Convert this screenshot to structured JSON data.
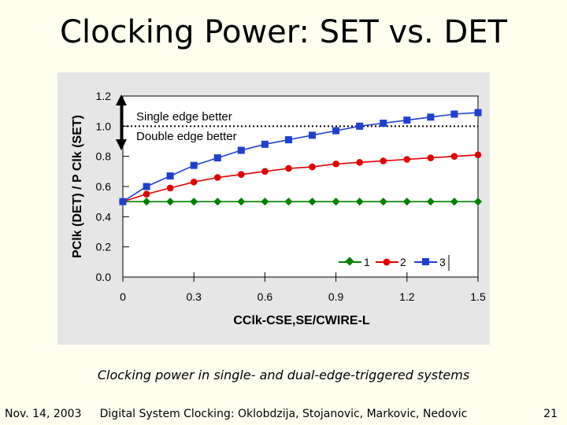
{
  "slide": {
    "title": "Clocking Power: SET vs. DET",
    "caption": "Clocking power in single- and dual-edge-triggered systems",
    "footer_left": "Nov. 14, 2003",
    "footer_center": "Digital System Clocking: Oklobdzija, Stojanovic, Markovic, Nedovic",
    "page_number": "21"
  },
  "chart_data": {
    "type": "line",
    "xlabel": "CClk-CSE,SE/CWIRE-L",
    "ylabel": "PClk (DET) / P Clk (SET)",
    "xlim": [
      0,
      1.5
    ],
    "ylim": [
      0,
      1.2
    ],
    "x_ticks": [
      "0",
      "0.3",
      "0.6",
      "0.9",
      "1.2",
      "1.5"
    ],
    "y_ticks": [
      "0.0",
      "0.2",
      "0.4",
      "0.6",
      "0.8",
      "1.0",
      "1.2"
    ],
    "reference_line": {
      "y": 1.0,
      "style": "dotted"
    },
    "annotations": {
      "above": "Single edge better",
      "below": "Double edge better"
    },
    "legend_position": "bottom-right",
    "series": [
      {
        "name": "1",
        "color": "#008000",
        "marker": "diamond",
        "points": [
          [
            0,
            0.5
          ],
          [
            0.1,
            0.5
          ],
          [
            0.2,
            0.5
          ],
          [
            0.3,
            0.5
          ],
          [
            0.4,
            0.5
          ],
          [
            0.5,
            0.5
          ],
          [
            0.6,
            0.5
          ],
          [
            0.7,
            0.5
          ],
          [
            0.8,
            0.5
          ],
          [
            0.9,
            0.5
          ],
          [
            1.0,
            0.5
          ],
          [
            1.1,
            0.5
          ],
          [
            1.2,
            0.5
          ],
          [
            1.3,
            0.5
          ],
          [
            1.4,
            0.5
          ],
          [
            1.5,
            0.5
          ]
        ]
      },
      {
        "name": "2",
        "color": "#e00000",
        "marker": "circle",
        "points": [
          [
            0,
            0.5
          ],
          [
            0.1,
            0.55
          ],
          [
            0.2,
            0.59
          ],
          [
            0.3,
            0.63
          ],
          [
            0.4,
            0.66
          ],
          [
            0.5,
            0.68
          ],
          [
            0.6,
            0.7
          ],
          [
            0.7,
            0.72
          ],
          [
            0.8,
            0.73
          ],
          [
            0.9,
            0.75
          ],
          [
            1.0,
            0.76
          ],
          [
            1.1,
            0.77
          ],
          [
            1.2,
            0.78
          ],
          [
            1.3,
            0.79
          ],
          [
            1.4,
            0.8
          ],
          [
            1.5,
            0.81
          ]
        ]
      },
      {
        "name": "3",
        "color": "#1f3fd0",
        "marker": "square",
        "points": [
          [
            0,
            0.5
          ],
          [
            0.1,
            0.6
          ],
          [
            0.2,
            0.67
          ],
          [
            0.3,
            0.74
          ],
          [
            0.4,
            0.79
          ],
          [
            0.5,
            0.84
          ],
          [
            0.6,
            0.88
          ],
          [
            0.7,
            0.91
          ],
          [
            0.8,
            0.94
          ],
          [
            0.9,
            0.97
          ],
          [
            1.0,
            1.0
          ],
          [
            1.1,
            1.02
          ],
          [
            1.2,
            1.04
          ],
          [
            1.3,
            1.06
          ],
          [
            1.4,
            1.08
          ],
          [
            1.5,
            1.09
          ]
        ]
      }
    ]
  }
}
